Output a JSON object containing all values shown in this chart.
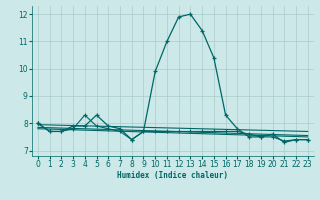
{
  "xlabel": "Humidex (Indice chaleur)",
  "bg_color": "#cce8e8",
  "grid_color": "#aacccc",
  "line_color": "#006666",
  "xlim": [
    -0.5,
    23.5
  ],
  "ylim": [
    6.8,
    12.3
  ],
  "yticks": [
    7,
    8,
    9,
    10,
    11,
    12
  ],
  "xticks": [
    0,
    1,
    2,
    3,
    4,
    5,
    6,
    7,
    8,
    9,
    10,
    11,
    12,
    13,
    14,
    15,
    16,
    17,
    18,
    19,
    20,
    21,
    22,
    23
  ],
  "main_x": [
    0,
    1,
    2,
    3,
    4,
    5,
    6,
    7,
    8,
    9,
    10,
    11,
    12,
    13,
    14,
    15,
    16,
    17,
    18,
    19,
    20,
    21,
    22,
    23
  ],
  "main_y": [
    8.0,
    7.7,
    7.7,
    7.9,
    7.9,
    8.3,
    7.9,
    7.8,
    7.4,
    7.7,
    9.9,
    11.0,
    11.9,
    12.0,
    11.4,
    10.4,
    8.3,
    7.8,
    7.5,
    7.5,
    7.6,
    7.3,
    7.4,
    7.4
  ],
  "line2_x": [
    0,
    23
  ],
  "line2_y": [
    7.95,
    7.7
  ],
  "line3_x": [
    0,
    23
  ],
  "line3_y": [
    7.85,
    7.55
  ],
  "line4_x": [
    0,
    23
  ],
  "line4_y": [
    7.8,
    7.5
  ],
  "zigzag_x": [
    0,
    1,
    2,
    3,
    4,
    5,
    6,
    7,
    8,
    9,
    10,
    11,
    12,
    13,
    14,
    15,
    16,
    17,
    18,
    19,
    20,
    21,
    22,
    23
  ],
  "zigzag_y": [
    8.0,
    7.7,
    7.7,
    7.8,
    8.3,
    7.9,
    7.8,
    7.7,
    7.4,
    7.7,
    7.7,
    7.7,
    7.7,
    7.7,
    7.7,
    7.7,
    7.7,
    7.7,
    7.6,
    7.5,
    7.5,
    7.35,
    7.4,
    7.4
  ]
}
